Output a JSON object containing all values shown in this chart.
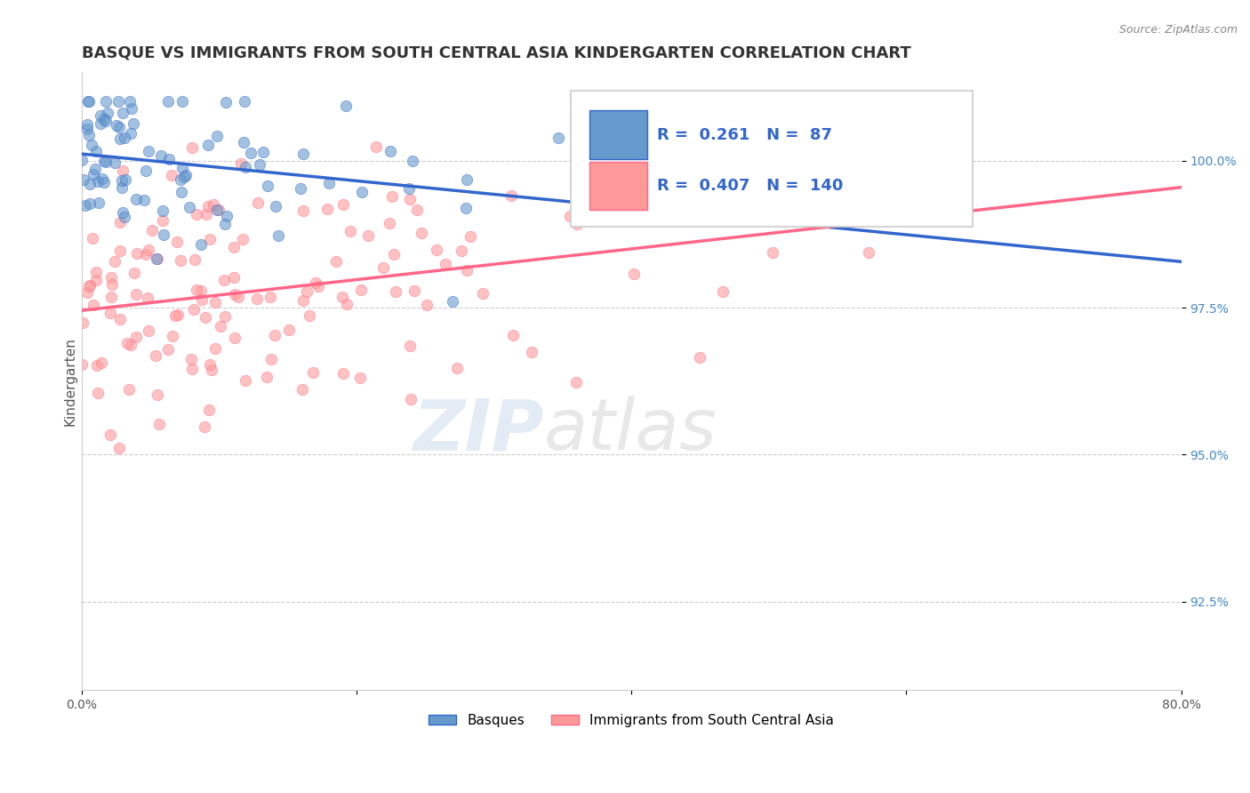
{
  "title": "BASQUE VS IMMIGRANTS FROM SOUTH CENTRAL ASIA KINDERGARTEN CORRELATION CHART",
  "source_text": "Source: ZipAtlas.com",
  "ylabel_text": "Kindergarten",
  "xlim": [
    0.0,
    80.0
  ],
  "ylim": [
    91.0,
    101.5
  ],
  "xtick_positions": [
    0.0,
    20.0,
    40.0,
    60.0,
    80.0
  ],
  "xtick_labels": [
    "0.0%",
    "",
    "",
    "",
    "80.0%"
  ],
  "ytick_positions": [
    92.5,
    95.0,
    97.5,
    100.0
  ],
  "ytick_labels": [
    "92.5%",
    "95.0%",
    "97.5%",
    "100.0%"
  ],
  "blue_R": 0.261,
  "blue_N": 87,
  "pink_R": 0.407,
  "pink_N": 140,
  "blue_color": "#6699CC",
  "pink_color": "#FF9999",
  "blue_line_color": "#3366CC",
  "pink_line_color": "#FF6688",
  "legend_label_blue": "Basques",
  "legend_label_pink": "Immigrants from South Central Asia",
  "watermark_zip": "ZIP",
  "watermark_atlas": "atlas",
  "title_fontsize": 13,
  "axis_label_fontsize": 11,
  "tick_fontsize": 10,
  "blue_seed": 42,
  "pink_seed": 7
}
